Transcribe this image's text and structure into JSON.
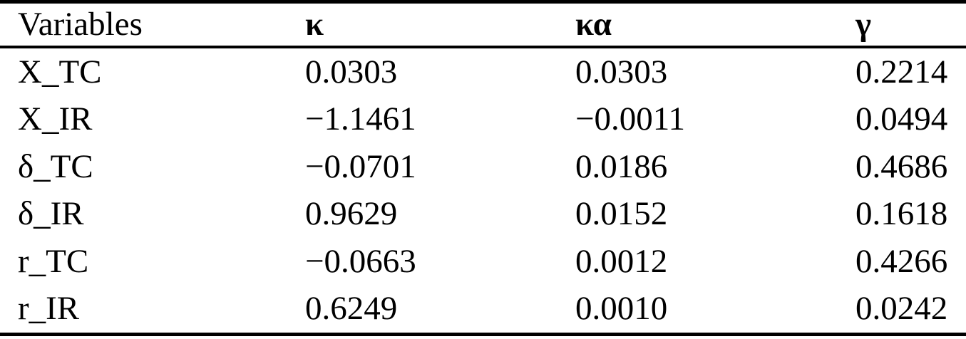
{
  "table": {
    "columns": [
      {
        "label": "Variables"
      },
      {
        "label": "κ"
      },
      {
        "label": "κα"
      },
      {
        "label": "γ"
      }
    ],
    "rows": [
      {
        "variable": "X_TC",
        "kappa": "0.0303",
        "kappa_alpha": "0.0303",
        "gamma": "0.2214"
      },
      {
        "variable": "X_IR",
        "kappa": "−1.1461",
        "kappa_alpha": "−0.0011",
        "gamma": "0.0494"
      },
      {
        "variable": "δ_TC",
        "kappa": "−0.0701",
        "kappa_alpha": "0.0186",
        "gamma": "0.4686"
      },
      {
        "variable": "δ_IR",
        "kappa": "0.9629",
        "kappa_alpha": "0.0152",
        "gamma": "0.1618"
      },
      {
        "variable": "r_TC",
        "kappa": "−0.0663",
        "kappa_alpha": "0.0012",
        "gamma": "0.4266"
      },
      {
        "variable": "r_IR",
        "kappa": "0.6249",
        "kappa_alpha": "0.0010",
        "gamma": "0.0242"
      }
    ]
  },
  "colors": {
    "background": "#ffffff",
    "text": "#000000",
    "rule": "#000000"
  }
}
